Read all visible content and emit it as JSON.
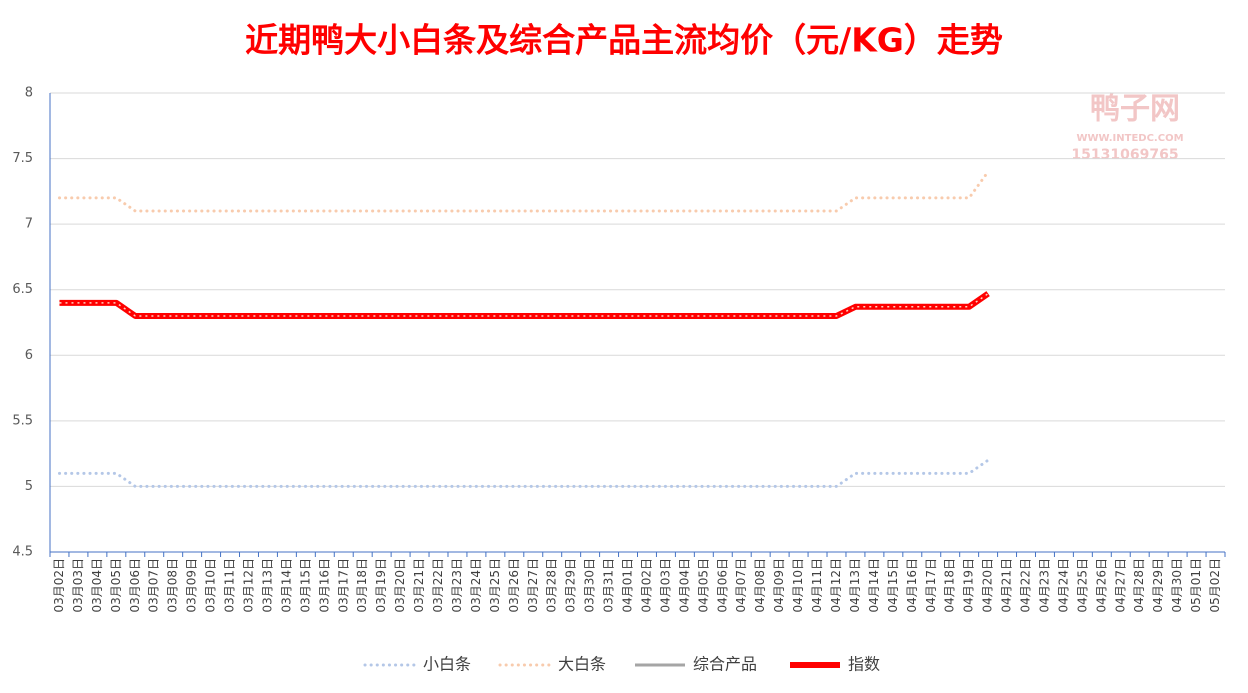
{
  "chart_data": {
    "type": "line",
    "title": "近期鸭大小白条及综合产品主流均价（元/KG）走势",
    "watermark": {
      "name": "鸭子网",
      "site": "WWW.INTEDC.COM",
      "phone": "15131069765"
    },
    "categories": [
      "03月02日",
      "03月03日",
      "03月04日",
      "03月05日",
      "03月06日",
      "03月07日",
      "03月08日",
      "03月09日",
      "03月10日",
      "03月11日",
      "03月12日",
      "03月13日",
      "03月14日",
      "03月15日",
      "03月16日",
      "03月17日",
      "03月18日",
      "03月19日",
      "03月20日",
      "03月21日",
      "03月22日",
      "03月23日",
      "03月24日",
      "03月25日",
      "03月26日",
      "03月27日",
      "03月28日",
      "03月29日",
      "03月30日",
      "03月31日",
      "04月01日",
      "04月02日",
      "04月03日",
      "04月04日",
      "04月05日",
      "04月06日",
      "04月07日",
      "04月08日",
      "04月09日",
      "04月10日",
      "04月11日",
      "04月12日",
      "04月13日",
      "04月14日",
      "04月15日",
      "04月16日",
      "04月17日",
      "04月18日",
      "04月19日",
      "04月20日",
      "04月21日",
      "04月22日",
      "04月23日",
      "04月24日",
      "04月25日",
      "04月26日",
      "04月27日",
      "04月28日",
      "04月29日",
      "04月30日",
      "05月01日",
      "05月02日"
    ],
    "series": [
      {
        "name": "小白条",
        "color": "#b4c7e7",
        "style": "dotted",
        "values": [
          5.1,
          5.1,
          5.1,
          5.1,
          5,
          5,
          5,
          5,
          5,
          5,
          5,
          5,
          5,
          5,
          5,
          5,
          5,
          5,
          5,
          5,
          5,
          5,
          5,
          5,
          5,
          5,
          5,
          5,
          5,
          5,
          5,
          5,
          5,
          5,
          5,
          5,
          5,
          5,
          5,
          5,
          5,
          5,
          5.1,
          5.1,
          5.1,
          5.1,
          5.1,
          5.1,
          5.1,
          5.2,
          null,
          null,
          null,
          null,
          null,
          null,
          null,
          null,
          null,
          null,
          null,
          null
        ]
      },
      {
        "name": "大白条",
        "color": "#f8cbad",
        "style": "dotted",
        "values": [
          7.2,
          7.2,
          7.2,
          7.2,
          7.1,
          7.1,
          7.1,
          7.1,
          7.1,
          7.1,
          7.1,
          7.1,
          7.1,
          7.1,
          7.1,
          7.1,
          7.1,
          7.1,
          7.1,
          7.1,
          7.1,
          7.1,
          7.1,
          7.1,
          7.1,
          7.1,
          7.1,
          7.1,
          7.1,
          7.1,
          7.1,
          7.1,
          7.1,
          7.1,
          7.1,
          7.1,
          7.1,
          7.1,
          7.1,
          7.1,
          7.1,
          7.1,
          7.2,
          7.2,
          7.2,
          7.2,
          7.2,
          7.2,
          7.2,
          7.4,
          null,
          null,
          null,
          null,
          null,
          null,
          null,
          null,
          null,
          null,
          null,
          null
        ]
      },
      {
        "name": "综合产品",
        "color": "#a5a5a5",
        "style": "solid",
        "values": [
          6.4,
          6.4,
          6.4,
          6.4,
          6.3,
          6.3,
          6.3,
          6.3,
          6.3,
          6.3,
          6.3,
          6.3,
          6.3,
          6.3,
          6.3,
          6.3,
          6.3,
          6.3,
          6.3,
          6.3,
          6.3,
          6.3,
          6.3,
          6.3,
          6.3,
          6.3,
          6.3,
          6.3,
          6.3,
          6.3,
          6.3,
          6.3,
          6.3,
          6.3,
          6.3,
          6.3,
          6.3,
          6.3,
          6.3,
          6.3,
          6.3,
          6.3,
          6.37,
          6.37,
          6.37,
          6.37,
          6.37,
          6.37,
          6.37,
          6.47,
          null,
          null,
          null,
          null,
          null,
          null,
          null,
          null,
          null,
          null,
          null,
          null
        ]
      },
      {
        "name": "指数",
        "color": "#ff0000",
        "style": "thick",
        "values": [
          6.4,
          6.4,
          6.4,
          6.4,
          6.3,
          6.3,
          6.3,
          6.3,
          6.3,
          6.3,
          6.3,
          6.3,
          6.3,
          6.3,
          6.3,
          6.3,
          6.3,
          6.3,
          6.3,
          6.3,
          6.3,
          6.3,
          6.3,
          6.3,
          6.3,
          6.3,
          6.3,
          6.3,
          6.3,
          6.3,
          6.3,
          6.3,
          6.3,
          6.3,
          6.3,
          6.3,
          6.3,
          6.3,
          6.3,
          6.3,
          6.3,
          6.3,
          6.37,
          6.37,
          6.37,
          6.37,
          6.37,
          6.37,
          6.37,
          6.47,
          null,
          null,
          null,
          null,
          null,
          null,
          null,
          null,
          null,
          null,
          null,
          null
        ]
      }
    ],
    "ylim": [
      4.5,
      8
    ],
    "yticks": [
      4.5,
      5,
      5.5,
      6,
      6.5,
      7,
      7.5,
      8
    ],
    "grid": true,
    "legend": "bottom"
  }
}
